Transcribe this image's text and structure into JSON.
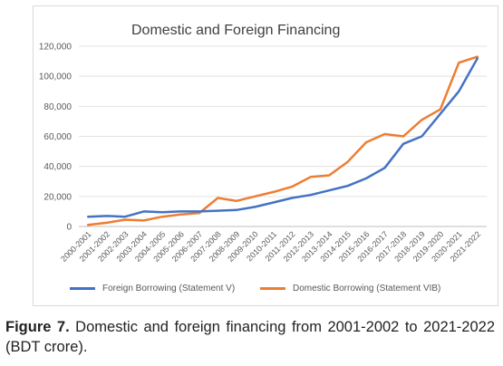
{
  "chart_data": {
    "type": "line",
    "title": "Domestic and Foreign Financing",
    "xlabel": "",
    "ylabel": "",
    "categories": [
      "2000-2001",
      "2001-2002",
      "2002-2003",
      "2003-2004",
      "2004-2005",
      "2005-2006",
      "2006-2007",
      "2007-2008",
      "2008-2009",
      "2009-2010",
      "2010-2011",
      "2011-2012",
      "2012-2013",
      "2013-2014",
      "2014-2015",
      "2015-2016",
      "2016-2017",
      "2017-2018",
      "2018-2019",
      "2019-2020",
      "2020-2021",
      "2021-2022"
    ],
    "ylim": [
      0,
      120000
    ],
    "yticks": [
      "0",
      "20,000",
      "40,000",
      "60,000",
      "80,000",
      "100,000",
      "120,000"
    ],
    "grid": true,
    "legend_position": "bottom",
    "series": [
      {
        "name": "Foreign Borrowing (Statement V)",
        "color": "#4472c4",
        "values": [
          6500,
          7000,
          6500,
          10000,
          9500,
          10000,
          10000,
          10500,
          11000,
          13000,
          16000,
          19000,
          21000,
          24000,
          27000,
          32000,
          39000,
          55000,
          60000,
          75000,
          90000,
          112000
        ]
      },
      {
        "name": "Domestic Borrowing (Statement VIB)",
        "color": "#ed7d31",
        "values": [
          1000,
          2500,
          4500,
          4000,
          6500,
          8000,
          9000,
          19000,
          17000,
          20000,
          23000,
          26500,
          33000,
          34000,
          43000,
          56000,
          61500,
          60000,
          71000,
          78000,
          109000,
          113000
        ]
      }
    ]
  },
  "caption": {
    "label": "Figure 7.",
    "text": " Domestic and foreign financing from 2001-2002 to 2021-2022 (BDT crore)."
  }
}
